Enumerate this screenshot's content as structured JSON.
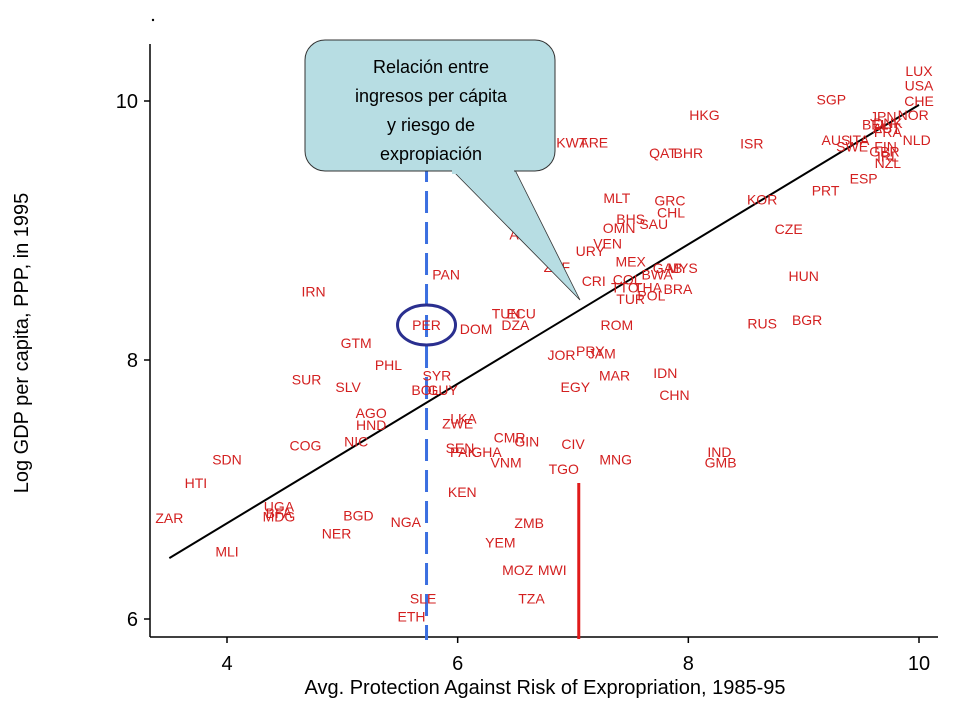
{
  "chart_data": {
    "type": "scatter",
    "xlabel": "Avg. Protection Against Risk of Expropriation, 1985-95",
    "ylabel": "Log GDP per capita, PPP, in 1995",
    "xlim": [
      3.2,
      10.2
    ],
    "ylim": [
      5.9,
      10.45
    ],
    "xticks": [
      4,
      6,
      8,
      10
    ],
    "yticks": [
      6,
      8,
      10
    ],
    "grid": false,
    "colors": {
      "points": "#d32020",
      "fit_line": "#000000",
      "ref_line_x": "#3b6fe0",
      "ref_line_red": "#e01b1b",
      "highlight": "#2a2f8f",
      "callout_fill": "#b7dde3"
    },
    "fit_line": {
      "x": [
        3.5,
        10.0
      ],
      "y": [
        6.47,
        9.97
      ]
    },
    "reference_lines": {
      "vertical_dashed_x": 5.73,
      "red_segment": {
        "x": 7.05,
        "y": [
          5.95,
          7.05
        ]
      }
    },
    "highlight_point": "PER",
    "callout": [
      "Relación entre",
      "ingresos per cápita",
      "y riesgo de",
      "expropiación"
    ],
    "points": [
      {
        "label": "LUX",
        "x": 10.0,
        "y": 10.23
      },
      {
        "label": "USA",
        "x": 10.0,
        "y": 10.12
      },
      {
        "label": "CHE",
        "x": 10.0,
        "y": 10.0
      },
      {
        "label": "SGP",
        "x": 9.24,
        "y": 10.01
      },
      {
        "label": "HKG",
        "x": 8.14,
        "y": 9.89
      },
      {
        "label": "JPN",
        "x": 9.69,
        "y": 9.88
      },
      {
        "label": "NOR",
        "x": 9.95,
        "y": 9.89
      },
      {
        "label": "BEL",
        "x": 9.62,
        "y": 9.82
      },
      {
        "label": "DNK",
        "x": 9.73,
        "y": 9.83
      },
      {
        "label": "AUT",
        "x": 9.72,
        "y": 9.79
      },
      {
        "label": "FRA",
        "x": 9.73,
        "y": 9.76
      },
      {
        "label": "AUS",
        "x": 9.28,
        "y": 9.7
      },
      {
        "label": "ITA",
        "x": 9.48,
        "y": 9.7
      },
      {
        "label": "SWE",
        "x": 9.42,
        "y": 9.65
      },
      {
        "label": "FIN",
        "x": 9.71,
        "y": 9.65
      },
      {
        "label": "NLD",
        "x": 9.98,
        "y": 9.7
      },
      {
        "label": "GBR",
        "x": 9.7,
        "y": 9.61
      },
      {
        "label": "IRL",
        "x": 9.73,
        "y": 9.57
      },
      {
        "label": "NZL",
        "x": 9.73,
        "y": 9.52
      },
      {
        "label": "ESP",
        "x": 9.52,
        "y": 9.4
      },
      {
        "label": "KWT",
        "x": 6.99,
        "y": 9.68
      },
      {
        "label": "ARE",
        "x": 7.18,
        "y": 9.68
      },
      {
        "label": "ISR",
        "x": 8.55,
        "y": 9.67
      },
      {
        "label": "QAT",
        "x": 7.78,
        "y": 9.6
      },
      {
        "label": "BHR",
        "x": 8.0,
        "y": 9.6
      },
      {
        "label": "PRT",
        "x": 9.19,
        "y": 9.31
      },
      {
        "label": "MLT",
        "x": 7.38,
        "y": 9.25
      },
      {
        "label": "GRC",
        "x": 7.84,
        "y": 9.23
      },
      {
        "label": "KOR",
        "x": 8.64,
        "y": 9.24
      },
      {
        "label": "CHL",
        "x": 7.85,
        "y": 9.14
      },
      {
        "label": "BHS",
        "x": 7.5,
        "y": 9.09
      },
      {
        "label": "SAU",
        "x": 7.7,
        "y": 9.05
      },
      {
        "label": "OMN",
        "x": 7.4,
        "y": 9.02
      },
      {
        "label": "CZE",
        "x": 8.87,
        "y": 9.01
      },
      {
        "label": "VEN",
        "x": 7.3,
        "y": 8.9
      },
      {
        "label": "URY",
        "x": 7.15,
        "y": 8.84
      },
      {
        "label": "ARG",
        "x": 6.58,
        "y": 8.97
      },
      {
        "label": "ZAF",
        "x": 6.86,
        "y": 8.72
      },
      {
        "label": "MEX",
        "x": 7.5,
        "y": 8.76
      },
      {
        "label": "GAB",
        "x": 7.82,
        "y": 8.71
      },
      {
        "label": "MYS",
        "x": 7.95,
        "y": 8.71
      },
      {
        "label": "BWA",
        "x": 7.73,
        "y": 8.66
      },
      {
        "label": "PAN",
        "x": 5.9,
        "y": 8.66
      },
      {
        "label": "CRI",
        "x": 7.18,
        "y": 8.61
      },
      {
        "label": "COL",
        "x": 7.47,
        "y": 8.62
      },
      {
        "label": "TTO",
        "x": 7.45,
        "y": 8.56
      },
      {
        "label": "THA",
        "x": 7.65,
        "y": 8.56
      },
      {
        "label": "BRA",
        "x": 7.91,
        "y": 8.55
      },
      {
        "label": "HUN",
        "x": 9.0,
        "y": 8.65
      },
      {
        "label": "TUR",
        "x": 7.5,
        "y": 8.47
      },
      {
        "label": "POL",
        "x": 7.68,
        "y": 8.5
      },
      {
        "label": "IRN",
        "x": 4.75,
        "y": 8.53
      },
      {
        "label": "TUN",
        "x": 6.42,
        "y": 8.36
      },
      {
        "label": "ECU",
        "x": 6.55,
        "y": 8.36
      },
      {
        "label": "DZA",
        "x": 6.5,
        "y": 8.27
      },
      {
        "label": "PER",
        "x": 5.73,
        "y": 8.27
      },
      {
        "label": "DOM",
        "x": 6.16,
        "y": 8.24
      },
      {
        "label": "ROM",
        "x": 7.38,
        "y": 8.27
      },
      {
        "label": "RUS",
        "x": 8.64,
        "y": 8.28
      },
      {
        "label": "BGR",
        "x": 9.03,
        "y": 8.31
      },
      {
        "label": "GTM",
        "x": 5.12,
        "y": 8.13
      },
      {
        "label": "JOR",
        "x": 6.9,
        "y": 8.04
      },
      {
        "label": "PRY",
        "x": 7.15,
        "y": 8.07
      },
      {
        "label": "JAM",
        "x": 7.25,
        "y": 8.05
      },
      {
        "label": "PHL",
        "x": 5.4,
        "y": 7.96
      },
      {
        "label": "SYR",
        "x": 5.82,
        "y": 7.88
      },
      {
        "label": "IDN",
        "x": 7.8,
        "y": 7.9
      },
      {
        "label": "MAR",
        "x": 7.36,
        "y": 7.88
      },
      {
        "label": "SUR",
        "x": 4.69,
        "y": 7.85
      },
      {
        "label": "SLV",
        "x": 5.05,
        "y": 7.79
      },
      {
        "label": "BOL",
        "x": 5.72,
        "y": 7.77
      },
      {
        "label": "GUY",
        "x": 5.87,
        "y": 7.77
      },
      {
        "label": "EGY",
        "x": 7.02,
        "y": 7.79
      },
      {
        "label": "CHN",
        "x": 7.88,
        "y": 7.73
      },
      {
        "label": "AGO",
        "x": 5.25,
        "y": 7.59
      },
      {
        "label": "HND",
        "x": 5.25,
        "y": 7.5
      },
      {
        "label": "IND",
        "x": 8.27,
        "y": 7.29
      },
      {
        "label": "NIC",
        "x": 5.12,
        "y": 7.37
      },
      {
        "label": "LKA",
        "x": 6.05,
        "y": 7.55
      },
      {
        "label": "ZWE",
        "x": 6.0,
        "y": 7.51
      },
      {
        "label": "CMR",
        "x": 6.45,
        "y": 7.4
      },
      {
        "label": "GIN",
        "x": 6.6,
        "y": 7.37
      },
      {
        "label": "CIV",
        "x": 7.0,
        "y": 7.35
      },
      {
        "label": "COG",
        "x": 4.68,
        "y": 7.34
      },
      {
        "label": "SEN",
        "x": 6.02,
        "y": 7.32
      },
      {
        "label": "PAK",
        "x": 6.05,
        "y": 7.29
      },
      {
        "label": "GHA",
        "x": 6.25,
        "y": 7.29
      },
      {
        "label": "VNM",
        "x": 6.42,
        "y": 7.21
      },
      {
        "label": "MNG",
        "x": 7.37,
        "y": 7.23
      },
      {
        "label": "GMB",
        "x": 8.28,
        "y": 7.21
      },
      {
        "label": "SDN",
        "x": 4.0,
        "y": 7.23
      },
      {
        "label": "TGO",
        "x": 6.92,
        "y": 7.16
      },
      {
        "label": "HTI",
        "x": 3.73,
        "y": 7.05
      },
      {
        "label": "KEN",
        "x": 6.04,
        "y": 6.98
      },
      {
        "label": "UGA",
        "x": 4.45,
        "y": 6.87
      },
      {
        "label": "BFA",
        "x": 4.45,
        "y": 6.82
      },
      {
        "label": "MDG",
        "x": 4.45,
        "y": 6.79
      },
      {
        "label": "ZAR",
        "x": 3.5,
        "y": 6.78
      },
      {
        "label": "BGD",
        "x": 5.14,
        "y": 6.8
      },
      {
        "label": "NGA",
        "x": 5.55,
        "y": 6.75
      },
      {
        "label": "ZMB",
        "x": 6.62,
        "y": 6.74
      },
      {
        "label": "NER",
        "x": 4.95,
        "y": 6.66
      },
      {
        "label": "YEM",
        "x": 6.37,
        "y": 6.59
      },
      {
        "label": "MLI",
        "x": 4.0,
        "y": 6.52
      },
      {
        "label": "MOZ",
        "x": 6.52,
        "y": 6.38
      },
      {
        "label": "MWI",
        "x": 6.82,
        "y": 6.38
      },
      {
        "label": "SLE",
        "x": 5.7,
        "y": 6.16
      },
      {
        "label": "TZA",
        "x": 6.64,
        "y": 6.16
      },
      {
        "label": "ETH",
        "x": 5.6,
        "y": 6.02
      }
    ]
  }
}
